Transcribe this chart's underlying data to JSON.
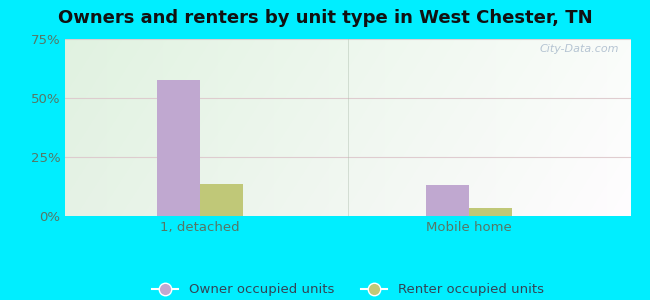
{
  "title": "Owners and renters by unit type in West Chester, TN",
  "categories": [
    "1, detached",
    "Mobile home"
  ],
  "owner_values": [
    57.5,
    13.0
  ],
  "renter_values": [
    13.5,
    3.5
  ],
  "owner_color": "#c0a8d0",
  "renter_color": "#c0c878",
  "ylim": [
    0,
    75
  ],
  "yticks": [
    0,
    25,
    50,
    75
  ],
  "yticklabels": [
    "0%",
    "25%",
    "50%",
    "75%"
  ],
  "bar_width": 0.32,
  "group_positions": [
    1.0,
    3.0
  ],
  "outer_bg": "#00eeff",
  "legend_owner": "Owner occupied units",
  "legend_renter": "Renter occupied units",
  "watermark": "City-Data.com",
  "title_fontsize": 13,
  "tick_fontsize": 9.5,
  "legend_fontsize": 9.5,
  "xlim": [
    0,
    4.2
  ]
}
